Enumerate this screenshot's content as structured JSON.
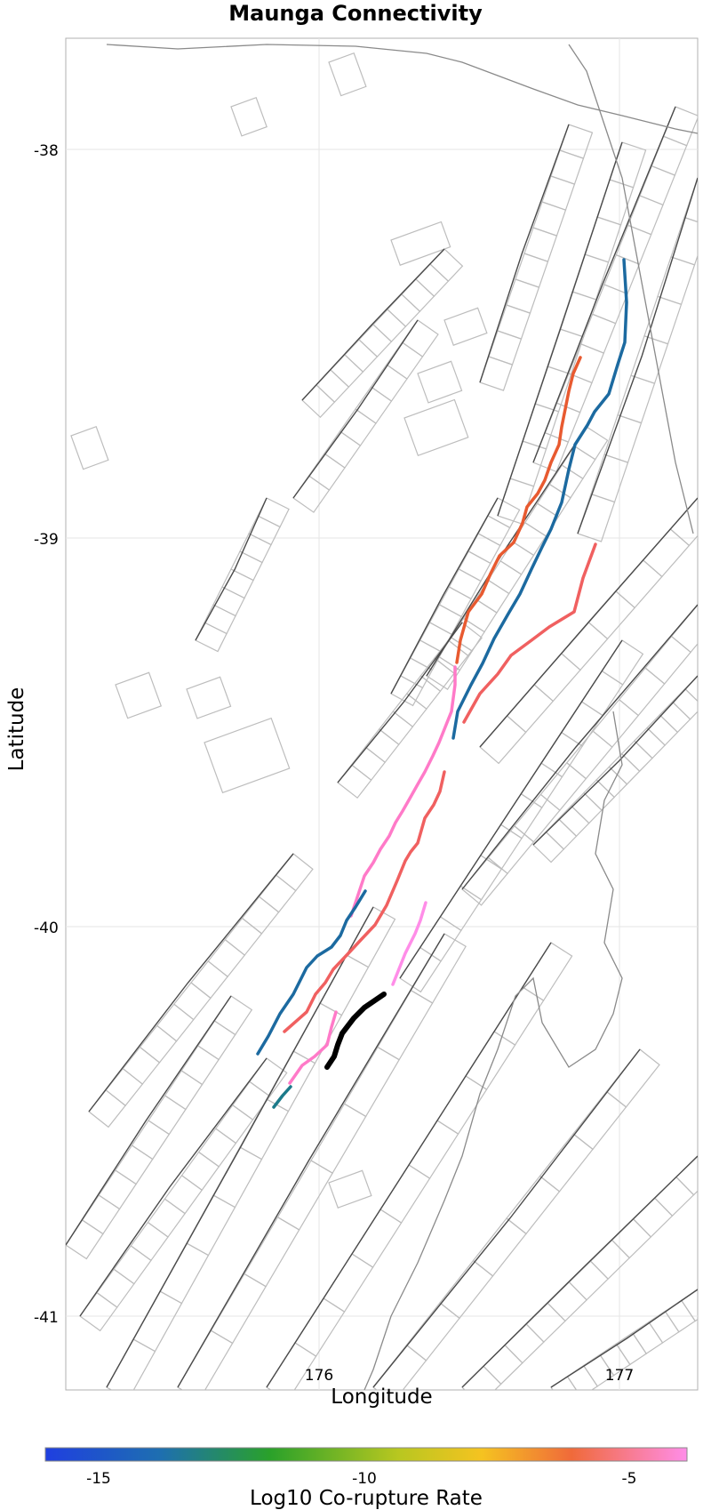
{
  "title": "Maunga Connectivity",
  "x_axis": {
    "label": "Longitude",
    "ticks": [
      "176",
      "177"
    ]
  },
  "y_axis": {
    "label": "Latitude",
    "ticks": [
      "-38",
      "-39",
      "-40",
      "-41"
    ]
  },
  "colorbar": {
    "label": "Log10 Co-rupture Rate",
    "ticks": [
      "-15",
      "-10",
      "-5"
    ],
    "colors": [
      "#1f3fe0",
      "#2aa12a",
      "#f5c320",
      "#f06a3a",
      "#ff8de8"
    ]
  },
  "map_colors": {
    "background_fault": "#bdbdbd",
    "fault_trace": "#4a4a4a",
    "coastline": "#8a8a8a",
    "target": "#000000"
  }
}
